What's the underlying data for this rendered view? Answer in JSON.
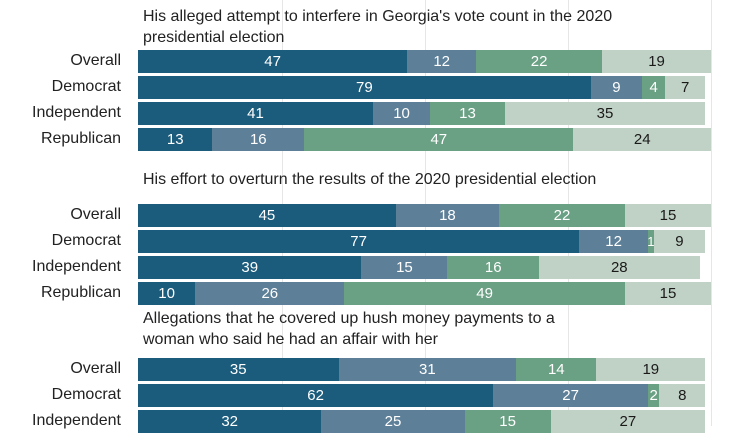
{
  "chart_data": {
    "type": "bar",
    "orientation": "horizontal",
    "stacked": true,
    "colors": [
      "#1b5b7c",
      "#5d7f98",
      "#6aa083",
      "#c0d1c5"
    ],
    "groups": [
      {
        "title": "His alleged attempt to interfere in Georgia's vote count in the 2020\npresidential election",
        "rows": [
          {
            "label": "Overall",
            "values": [
              47,
              12,
              22,
              19
            ]
          },
          {
            "label": "Democrat",
            "values": [
              79,
              9,
              4,
              7
            ]
          },
          {
            "label": "Independent",
            "values": [
              41,
              10,
              13,
              35
            ]
          },
          {
            "label": "Republican",
            "values": [
              13,
              16,
              47,
              24
            ]
          }
        ]
      },
      {
        "title": "His effort to overturn the results of the 2020 presidential election",
        "rows": [
          {
            "label": "Overall",
            "values": [
              45,
              18,
              22,
              15
            ]
          },
          {
            "label": "Democrat",
            "values": [
              77,
              12,
              1,
              9
            ]
          },
          {
            "label": "Independent",
            "values": [
              39,
              15,
              16,
              28
            ]
          },
          {
            "label": "Republican",
            "values": [
              10,
              26,
              49,
              15
            ]
          }
        ]
      },
      {
        "title": "Allegations that he covered up hush money payments to a\nwoman who said he had an affair with her",
        "rows": [
          {
            "label": "Overall",
            "values": [
              35,
              31,
              14,
              19
            ]
          },
          {
            "label": "Democrat",
            "values": [
              62,
              27,
              2,
              8
            ]
          },
          {
            "label": "Independent",
            "values": [
              32,
              25,
              15,
              27
            ]
          }
        ]
      }
    ]
  }
}
